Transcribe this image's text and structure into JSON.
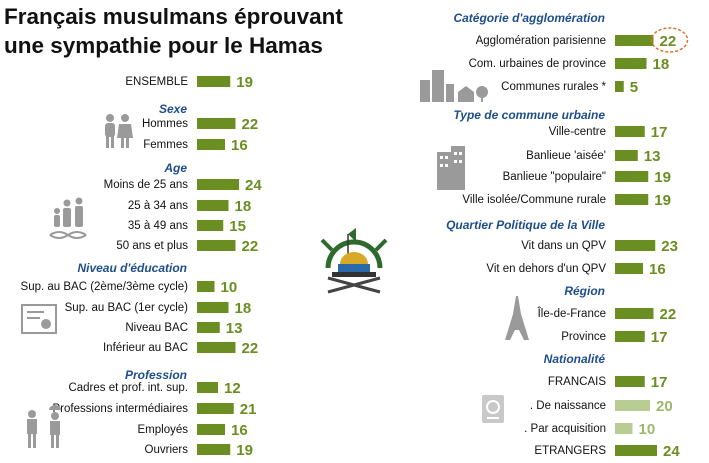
{
  "chart_data": {
    "type": "bar",
    "title_lines": [
      "Français musulmans éprouvant",
      "une sympathie pour le Hamas"
    ],
    "colors": {
      "bar": "#6b8e23",
      "bar_light": "#b9cc94",
      "value_text": "#6b8e23",
      "section_text": "#1f4e8c",
      "highlight_ring": "#e0702a"
    },
    "groups": [
      {
        "name": "",
        "items": [
          {
            "label": "ENSEMBLE",
            "value": 19
          }
        ]
      },
      {
        "name": "Sexe",
        "items": [
          {
            "label": "Hommes",
            "value": 22
          },
          {
            "label": "Femmes",
            "value": 16
          }
        ]
      },
      {
        "name": "Age",
        "items": [
          {
            "label": "Moins de 25 ans",
            "value": 24
          },
          {
            "label": "25 à 34 ans",
            "value": 18
          },
          {
            "label": "35 à 49 ans",
            "value": 15
          },
          {
            "label": "50 ans et plus",
            "value": 22
          }
        ]
      },
      {
        "name": "Niveau d'éducation",
        "items": [
          {
            "label": "Sup. au BAC (2ème/3ème cycle)",
            "value": 10
          },
          {
            "label": "Sup. au BAC (1er cycle)",
            "value": 18
          },
          {
            "label": "Niveau BAC",
            "value": 13
          },
          {
            "label": "Inférieur au BAC",
            "value": 22
          }
        ]
      },
      {
        "name": "Profession",
        "items": [
          {
            "label": "Cadres et prof. int. sup.",
            "value": 12
          },
          {
            "label": "Professions intermédiaires",
            "value": 21
          },
          {
            "label": "Employés",
            "value": 16
          },
          {
            "label": "Ouvriers",
            "value": 19
          }
        ]
      },
      {
        "name": "Catégorie d'agglomération",
        "items": [
          {
            "label": "Agglomération parisienne",
            "value": 22,
            "highlight": true
          },
          {
            "label": "Com. urbaines de province",
            "value": 18
          },
          {
            "label": "Communes rurales *",
            "value": 5
          }
        ]
      },
      {
        "name": "Type de commune urbaine",
        "items": [
          {
            "label": "Ville-centre",
            "value": 17
          },
          {
            "label": "Banlieue 'aisée'",
            "value": 13
          },
          {
            "label": "Banlieue \"populaire\"",
            "value": 19
          },
          {
            "label": "Ville isolée/Commune rurale",
            "value": 19
          }
        ]
      },
      {
        "name": "Quartier Politique de la Ville",
        "items": [
          {
            "label": "Vit dans un QPV",
            "value": 23
          },
          {
            "label": "Vit en dehors d'un QPV",
            "value": 16
          }
        ]
      },
      {
        "name": "Région",
        "items": [
          {
            "label": "Île-de-France",
            "value": 22
          },
          {
            "label": "Province",
            "value": 17
          }
        ]
      },
      {
        "name": "Nationalité",
        "items": [
          {
            "label": "FRANCAIS",
            "value": 17
          },
          {
            "label": ". De naissance",
            "value": 20,
            "light": true
          },
          {
            "label": ". Par acquisition",
            "value": 10,
            "light": true
          },
          {
            "label": "ETRANGERS",
            "value": 24
          }
        ]
      }
    ],
    "icons": [
      "people-icon",
      "family-dna-icon",
      "diploma-icon",
      "workers-icon",
      "city-icon",
      "building-icon",
      "eiffel-tower-icon",
      "passport-icon",
      "hamas-emblem"
    ]
  }
}
